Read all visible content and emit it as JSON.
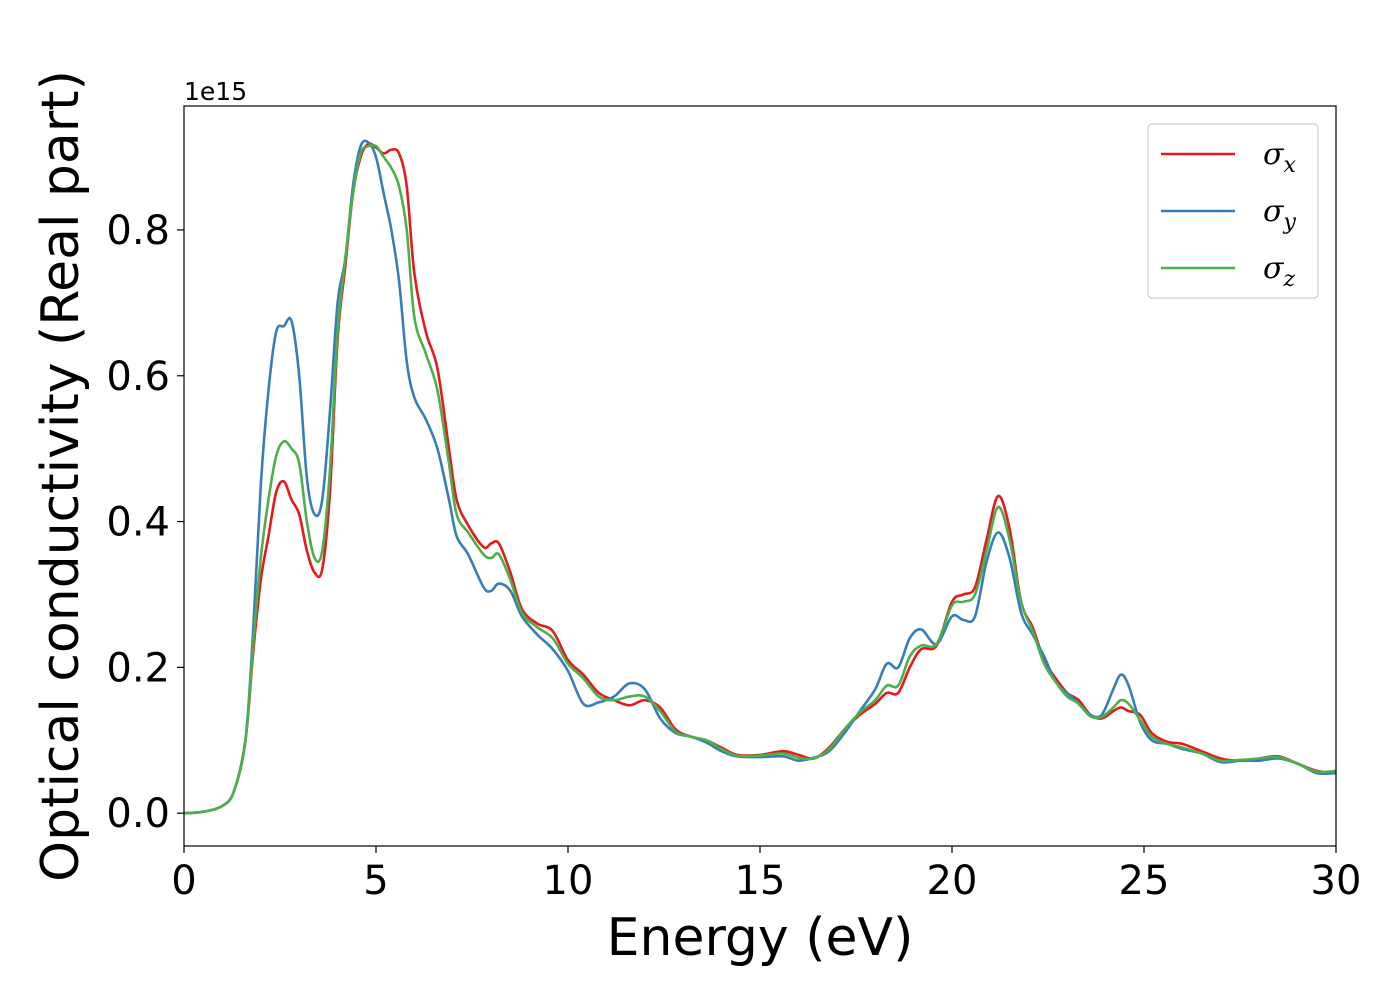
{
  "chart_data": {
    "type": "line",
    "title": "",
    "xlabel": "Energy (eV)",
    "ylabel": "Optical conductivity (Real part)",
    "y_offset_label": "1e15",
    "xlim": [
      0,
      30
    ],
    "ylim": [
      -0.045,
      0.97
    ],
    "xticks": [
      0,
      5,
      10,
      15,
      20,
      25,
      30
    ],
    "xtick_labels": [
      "0",
      "5",
      "10",
      "15",
      "20",
      "25",
      "30"
    ],
    "yticks": [
      0.0,
      0.2,
      0.4,
      0.6,
      0.8
    ],
    "ytick_labels": [
      "0.0",
      "0.2",
      "0.4",
      "0.6",
      "0.8"
    ],
    "grid": false,
    "legend_position": "top-right",
    "series": [
      {
        "name": "σx",
        "legend_base": "σ",
        "legend_sub": "x",
        "color": "#e41a1c",
        "x": [
          0,
          0.5,
          1.0,
          1.3,
          1.6,
          1.8,
          2.0,
          2.2,
          2.4,
          2.6,
          2.8,
          3.0,
          3.2,
          3.4,
          3.6,
          3.8,
          4.0,
          4.2,
          4.4,
          4.6,
          4.8,
          5.0,
          5.2,
          5.4,
          5.6,
          5.8,
          6.0,
          6.3,
          6.6,
          6.9,
          7.1,
          7.4,
          7.8,
          8.0,
          8.2,
          8.5,
          8.8,
          9.2,
          9.6,
          10.0,
          10.4,
          10.8,
          11.2,
          11.6,
          12.0,
          12.4,
          12.8,
          13.2,
          13.6,
          14.0,
          14.4,
          15.0,
          15.6,
          16.0,
          16.4,
          16.8,
          17.2,
          17.6,
          18.0,
          18.3,
          18.6,
          18.9,
          19.2,
          19.6,
          20.0,
          20.3,
          20.6,
          20.9,
          21.2,
          21.5,
          21.8,
          22.1,
          22.4,
          22.7,
          23.0,
          23.3,
          23.6,
          23.9,
          24.2,
          24.4,
          24.6,
          24.9,
          25.2,
          25.6,
          26.0,
          26.5,
          27.0,
          27.5,
          28.0,
          28.5,
          29.0,
          29.5,
          30.0
        ],
        "y": [
          0.0,
          0.002,
          0.01,
          0.03,
          0.1,
          0.22,
          0.32,
          0.38,
          0.44,
          0.455,
          0.43,
          0.41,
          0.36,
          0.33,
          0.335,
          0.44,
          0.65,
          0.75,
          0.85,
          0.9,
          0.918,
          0.913,
          0.905,
          0.91,
          0.905,
          0.86,
          0.74,
          0.66,
          0.61,
          0.5,
          0.43,
          0.395,
          0.365,
          0.37,
          0.37,
          0.33,
          0.28,
          0.26,
          0.25,
          0.21,
          0.19,
          0.165,
          0.155,
          0.148,
          0.155,
          0.145,
          0.115,
          0.105,
          0.1,
          0.09,
          0.08,
          0.08,
          0.085,
          0.08,
          0.075,
          0.09,
          0.115,
          0.135,
          0.15,
          0.165,
          0.165,
          0.2,
          0.225,
          0.23,
          0.29,
          0.3,
          0.31,
          0.375,
          0.435,
          0.39,
          0.29,
          0.255,
          0.21,
          0.185,
          0.165,
          0.155,
          0.135,
          0.13,
          0.14,
          0.145,
          0.14,
          0.135,
          0.11,
          0.098,
          0.095,
          0.085,
          0.075,
          0.072,
          0.075,
          0.078,
          0.068,
          0.058,
          0.055
        ]
      },
      {
        "name": "σy",
        "legend_base": "σ",
        "legend_sub": "y",
        "color": "#377eb8",
        "x": [
          0,
          0.5,
          1.0,
          1.3,
          1.6,
          1.8,
          2.0,
          2.2,
          2.4,
          2.6,
          2.8,
          3.0,
          3.2,
          3.4,
          3.6,
          3.8,
          4.0,
          4.2,
          4.4,
          4.6,
          4.8,
          5.0,
          5.2,
          5.4,
          5.6,
          5.8,
          6.0,
          6.3,
          6.6,
          6.9,
          7.1,
          7.4,
          7.8,
          8.0,
          8.2,
          8.5,
          8.8,
          9.2,
          9.6,
          10.0,
          10.4,
          10.8,
          11.2,
          11.6,
          12.0,
          12.4,
          12.8,
          13.2,
          13.6,
          14.0,
          14.4,
          15.0,
          15.6,
          16.0,
          16.4,
          16.8,
          17.2,
          17.6,
          18.0,
          18.3,
          18.6,
          18.9,
          19.2,
          19.6,
          20.0,
          20.3,
          20.6,
          20.9,
          21.2,
          21.5,
          21.8,
          22.1,
          22.4,
          22.7,
          23.0,
          23.3,
          23.6,
          23.9,
          24.2,
          24.4,
          24.6,
          24.9,
          25.2,
          25.6,
          26.0,
          26.5,
          27.0,
          27.5,
          28.0,
          28.5,
          29.0,
          29.5,
          30.0
        ],
        "y": [
          0.0,
          0.002,
          0.01,
          0.03,
          0.1,
          0.25,
          0.45,
          0.58,
          0.66,
          0.668,
          0.675,
          0.6,
          0.46,
          0.41,
          0.43,
          0.55,
          0.7,
          0.76,
          0.86,
          0.915,
          0.92,
          0.9,
          0.85,
          0.8,
          0.73,
          0.62,
          0.57,
          0.54,
          0.5,
          0.43,
          0.38,
          0.355,
          0.31,
          0.305,
          0.315,
          0.305,
          0.27,
          0.245,
          0.225,
          0.195,
          0.15,
          0.152,
          0.16,
          0.178,
          0.17,
          0.13,
          0.11,
          0.105,
          0.097,
          0.085,
          0.078,
          0.077,
          0.078,
          0.072,
          0.076,
          0.085,
          0.11,
          0.14,
          0.17,
          0.205,
          0.2,
          0.24,
          0.252,
          0.232,
          0.27,
          0.265,
          0.27,
          0.345,
          0.385,
          0.35,
          0.275,
          0.245,
          0.215,
          0.18,
          0.165,
          0.15,
          0.135,
          0.135,
          0.17,
          0.19,
          0.175,
          0.125,
          0.1,
          0.095,
          0.088,
          0.082,
          0.07,
          0.072,
          0.072,
          0.075,
          0.068,
          0.055,
          0.055
        ]
      },
      {
        "name": "σz",
        "legend_base": "σ",
        "legend_sub": "z",
        "color": "#4daf4a",
        "x": [
          0,
          0.5,
          1.0,
          1.3,
          1.6,
          1.8,
          2.0,
          2.2,
          2.4,
          2.6,
          2.8,
          3.0,
          3.2,
          3.4,
          3.6,
          3.8,
          4.0,
          4.2,
          4.4,
          4.6,
          4.8,
          5.0,
          5.2,
          5.4,
          5.6,
          5.8,
          6.0,
          6.3,
          6.6,
          6.9,
          7.1,
          7.4,
          7.8,
          8.0,
          8.2,
          8.5,
          8.8,
          9.2,
          9.6,
          10.0,
          10.4,
          10.8,
          11.2,
          11.6,
          12.0,
          12.4,
          12.8,
          13.2,
          13.6,
          14.0,
          14.4,
          15.0,
          15.6,
          16.0,
          16.4,
          16.8,
          17.2,
          17.6,
          18.0,
          18.3,
          18.6,
          18.9,
          19.2,
          19.6,
          20.0,
          20.3,
          20.6,
          20.9,
          21.2,
          21.5,
          21.8,
          22.1,
          22.4,
          22.7,
          23.0,
          23.3,
          23.6,
          23.9,
          24.2,
          24.4,
          24.6,
          24.9,
          25.2,
          25.6,
          26.0,
          26.5,
          27.0,
          27.5,
          28.0,
          28.5,
          29.0,
          29.5,
          30.0
        ],
        "y": [
          0.0,
          0.002,
          0.01,
          0.03,
          0.1,
          0.23,
          0.35,
          0.43,
          0.49,
          0.51,
          0.5,
          0.48,
          0.4,
          0.35,
          0.36,
          0.47,
          0.66,
          0.76,
          0.85,
          0.905,
          0.915,
          0.915,
          0.9,
          0.885,
          0.86,
          0.8,
          0.68,
          0.63,
          0.58,
          0.48,
          0.41,
          0.385,
          0.355,
          0.35,
          0.355,
          0.32,
          0.275,
          0.255,
          0.24,
          0.205,
          0.185,
          0.16,
          0.155,
          0.16,
          0.16,
          0.14,
          0.112,
          0.105,
          0.1,
          0.088,
          0.079,
          0.079,
          0.082,
          0.076,
          0.075,
          0.088,
          0.115,
          0.138,
          0.155,
          0.175,
          0.175,
          0.215,
          0.23,
          0.232,
          0.285,
          0.29,
          0.3,
          0.36,
          0.42,
          0.375,
          0.29,
          0.25,
          0.205,
          0.18,
          0.16,
          0.15,
          0.133,
          0.132,
          0.145,
          0.155,
          0.15,
          0.128,
          0.105,
          0.095,
          0.09,
          0.082,
          0.072,
          0.073,
          0.075,
          0.077,
          0.068,
          0.057,
          0.058
        ]
      }
    ]
  }
}
